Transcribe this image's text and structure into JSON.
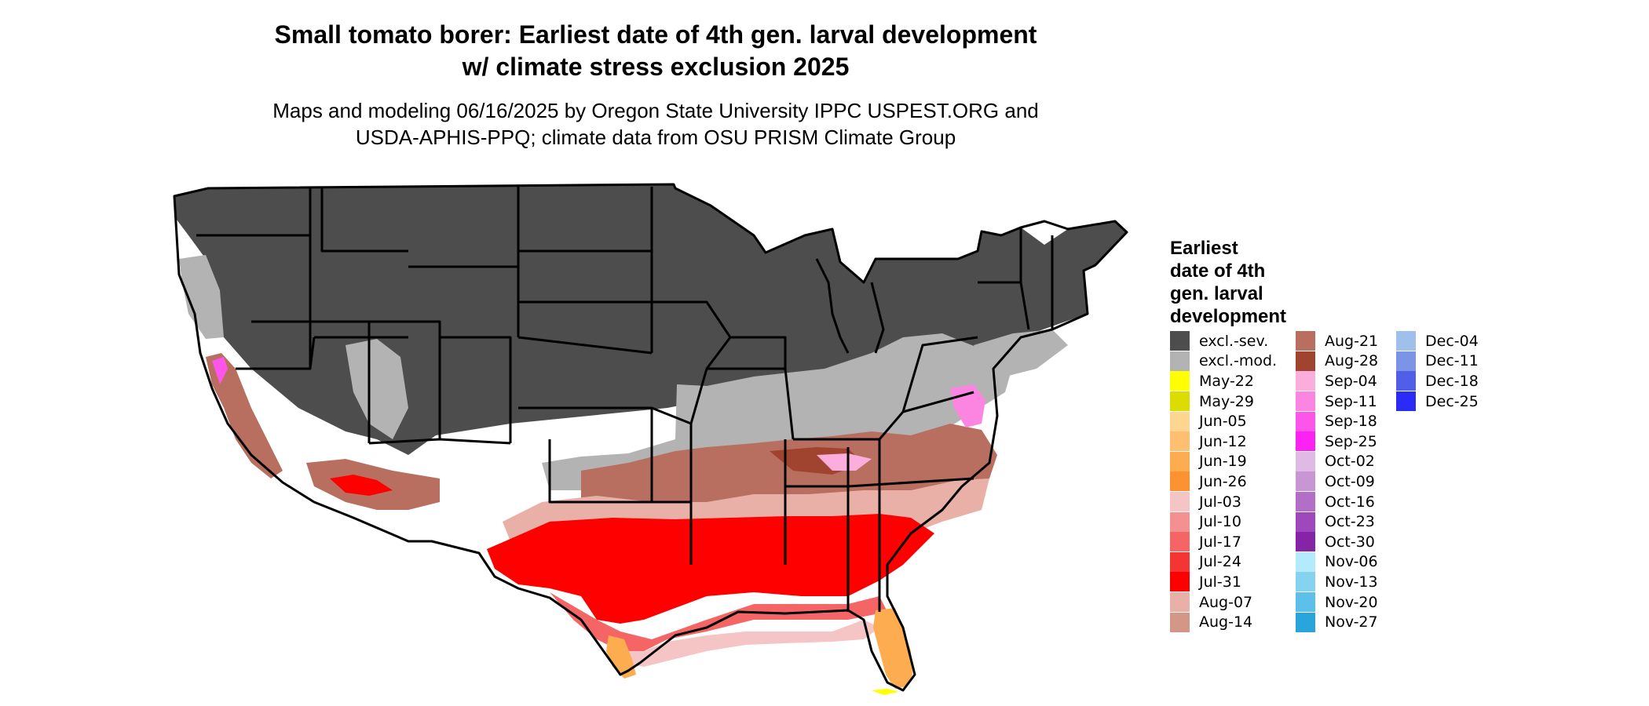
{
  "title": {
    "line1": "Small tomato borer: Earliest date of 4th gen. larval development",
    "line2": "w/ climate stress exclusion 2025"
  },
  "subtitle": {
    "line1": "Maps and modeling 06/16/2025 by Oregon State University IPPC USPEST.ORG and",
    "line2": "USDA-APHIS-PPQ; climate data from OSU PRISM Climate Group"
  },
  "legend": {
    "title_lines": [
      "Earliest",
      "date of 4th",
      "gen. larval",
      "development"
    ],
    "columns": [
      [
        {
          "label": "excl.-sev.",
          "color": "#4d4d4d"
        },
        {
          "label": "excl.-mod.",
          "color": "#b3b3b3"
        },
        {
          "label": "May-22",
          "color": "#ffff00"
        },
        {
          "label": "May-29",
          "color": "#dcdc00"
        },
        {
          "label": "Jun-05",
          "color": "#fed690"
        },
        {
          "label": "Jun-12",
          "color": "#fec070"
        },
        {
          "label": "Jun-19",
          "color": "#fdad50"
        },
        {
          "label": "Jun-26",
          "color": "#fc9330"
        },
        {
          "label": "Jul-03",
          "color": "#f5c4c4"
        },
        {
          "label": "Jul-10",
          "color": "#f59090"
        },
        {
          "label": "Jul-17",
          "color": "#f56565"
        },
        {
          "label": "Jul-24",
          "color": "#f53434"
        },
        {
          "label": "Jul-31",
          "color": "#fe0000"
        },
        {
          "label": "Aug-07",
          "color": "#e8b0a6"
        },
        {
          "label": "Aug-14",
          "color": "#d49787"
        }
      ],
      [
        {
          "label": "Aug-21",
          "color": "#b86f60"
        },
        {
          "label": "Aug-28",
          "color": "#a0432f"
        },
        {
          "label": "Sep-04",
          "color": "#fbaedc"
        },
        {
          "label": "Sep-11",
          "color": "#fd85e2"
        },
        {
          "label": "Sep-18",
          "color": "#fd55ea"
        },
        {
          "label": "Sep-25",
          "color": "#fd22f4"
        },
        {
          "label": "Oct-02",
          "color": "#dfbae4"
        },
        {
          "label": "Oct-09",
          "color": "#c896d3"
        },
        {
          "label": "Oct-16",
          "color": "#b36fc7"
        },
        {
          "label": "Oct-23",
          "color": "#9e48bb"
        },
        {
          "label": "Oct-30",
          "color": "#8624a8"
        },
        {
          "label": "Nov-06",
          "color": "#b3ebfc"
        },
        {
          "label": "Nov-13",
          "color": "#86d3f0"
        },
        {
          "label": "Nov-20",
          "color": "#5cc0ea"
        },
        {
          "label": "Nov-27",
          "color": "#2aa5dc"
        }
      ],
      [
        {
          "label": "Dec-04",
          "color": "#9fc0ea"
        },
        {
          "label": "Dec-11",
          "color": "#7b94e8"
        },
        {
          "label": "Dec-18",
          "color": "#515ee8"
        },
        {
          "label": "Dec-25",
          "color": "#2b2bf7"
        }
      ]
    ]
  }
}
